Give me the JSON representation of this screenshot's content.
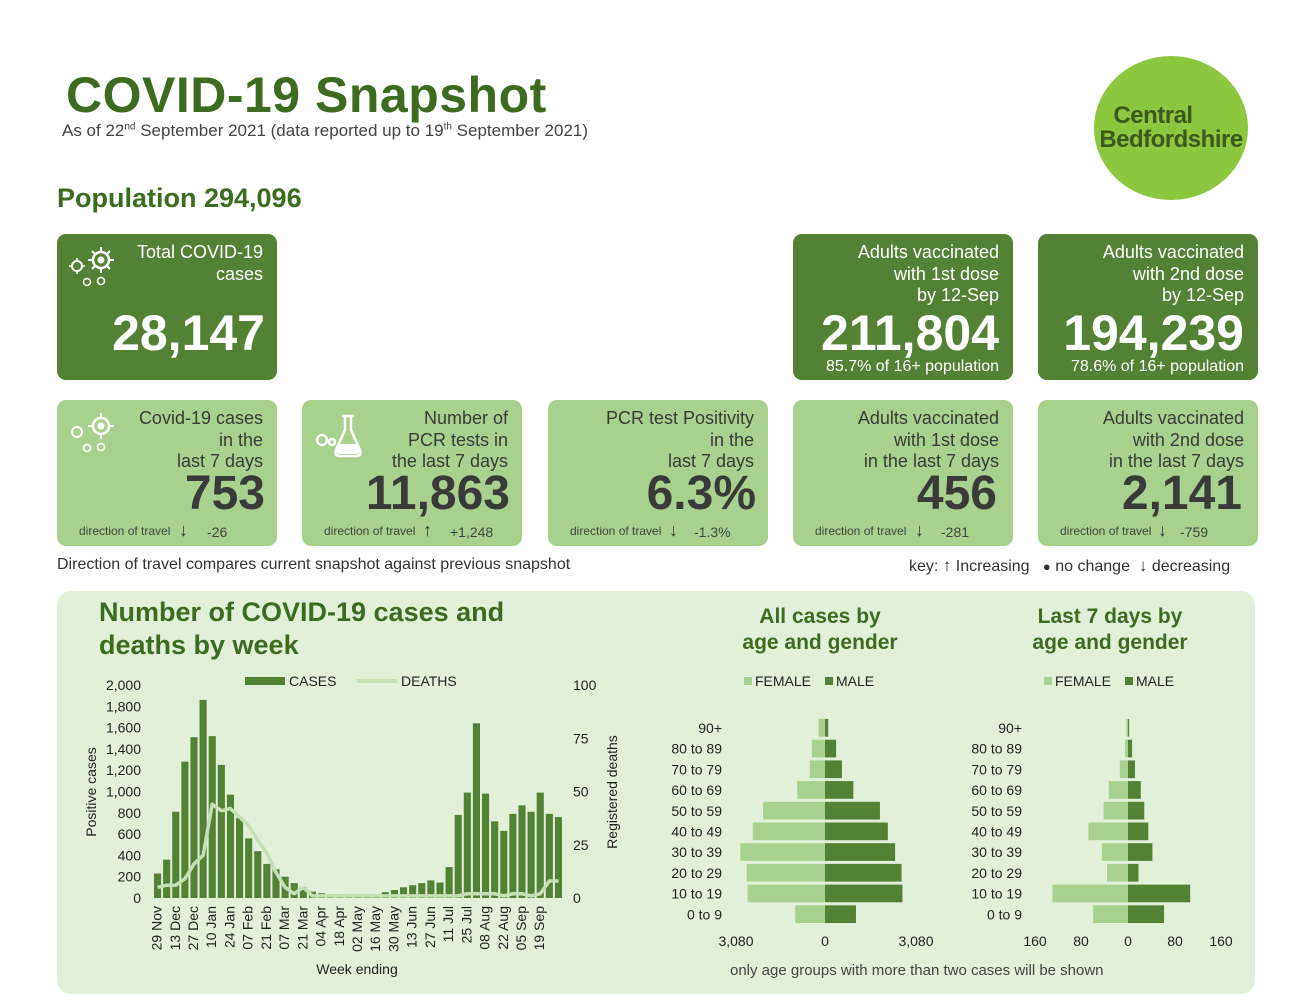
{
  "header": {
    "title": "COVID-19 Snapshot",
    "subtitle_prefix": "As of 22",
    "subtitle_sup1": "nd",
    "subtitle_mid": " September 2021 (data reported up to 19",
    "subtitle_sup2": "th",
    "subtitle_suffix": " September 2021)",
    "logo_line1": "Central",
    "logo_line2": "Bedfordshire",
    "population": "Population 294,096"
  },
  "colors": {
    "dark_green": "#548235",
    "light_green": "#a9d18e",
    "panel_bg": "#e2f0d9",
    "title_green": "#3d6b1f",
    "logo_green": "#8dc63f"
  },
  "top_cards": [
    {
      "label": "Total COVID-19\ncases",
      "value": "28,147",
      "pct": "",
      "icon": "virus-icon"
    },
    {
      "label": "Adults vaccinated\nwith 1st dose\nby 12-Sep",
      "value": "211,804",
      "pct": "85.7% of 16+ population"
    },
    {
      "label": "Adults vaccinated\nwith 2nd dose\nby 12-Sep",
      "value": "194,239",
      "pct": "78.6% of 16+ population"
    }
  ],
  "week_cards": [
    {
      "label": "Covid-19 cases\nin the\nlast 7 days",
      "value": "753",
      "dir_label": "direction of travel",
      "arrow": "↓",
      "change": "-26",
      "icon": "virus-icon"
    },
    {
      "label": "Number of\nPCR tests in\nthe last 7 days",
      "value": "11,863",
      "dir_label": "direction of travel",
      "arrow": "↑",
      "change": "+1,248",
      "icon": "flask-icon"
    },
    {
      "label": "PCR test Positivity\nin the\nlast 7 days",
      "value": "6.3%",
      "dir_label": "direction of travel",
      "arrow": "↓",
      "change": "-1.3%"
    },
    {
      "label": "Adults vaccinated\nwith 1st dose\nin the last 7 days",
      "value": "456",
      "dir_label": "direction of travel",
      "arrow": "↓",
      "change": "-281"
    },
    {
      "label": "Adults vaccinated\nwith 2nd dose\nin the last 7 days",
      "value": "2,141",
      "dir_label": "direction of travel",
      "arrow": "↓",
      "change": "-759"
    }
  ],
  "notes": {
    "direction": "Direction of travel compares current snapshot against previous snapshot",
    "key": "key:",
    "key_up_arrow": "↑",
    "key_up": "Increasing",
    "key_dot": "●",
    "key_same": "no change",
    "key_down_arrow": "↓",
    "key_down": "decreasing",
    "footnote": "only age groups with more than two cases will be shown"
  },
  "chart_titles": {
    "weekly": "Number of COVID-19 cases and\ndeaths by week",
    "all_cases": "All cases by\nage and gender",
    "last7": "Last 7 days by\nage and gender"
  },
  "chart_data": [
    {
      "type": "bar",
      "title": "Number of COVID-19 cases and deaths by week",
      "xlabel": "Week ending",
      "ylabel": "Positive cases",
      "y2label": "Registered deaths",
      "ylim": [
        0,
        2000
      ],
      "y2lim": [
        0,
        100
      ],
      "yticks": [
        "0",
        "200",
        "400",
        "600",
        "800",
        "1,000",
        "1,200",
        "1,400",
        "1,600",
        "1,800",
        "2,000"
      ],
      "y2ticks": [
        "0",
        "25",
        "50",
        "75",
        "100"
      ],
      "xtick_labels": [
        "29 Nov",
        "13 Dec",
        "27 Dec",
        "10 Jan",
        "24 Jan",
        "07 Feb",
        "21 Feb",
        "07 Mar",
        "21 Mar",
        "04 Apr",
        "18 Apr",
        "02 May",
        "16 May",
        "30 May",
        "13 Jun",
        "27 Jun",
        "11 Jul",
        "25 Jul",
        "08 Aug",
        "22 Aug",
        "05 Sep",
        "19 Sep"
      ],
      "legend": [
        "CASES",
        "DEATHS"
      ],
      "series": [
        {
          "name": "CASES",
          "type": "bar",
          "values": [
            230,
            360,
            810,
            1280,
            1510,
            1860,
            1520,
            1250,
            970,
            750,
            560,
            440,
            320,
            270,
            200,
            140,
            100,
            60,
            45,
            35,
            35,
            30,
            30,
            30,
            30,
            55,
            75,
            100,
            120,
            140,
            165,
            145,
            290,
            780,
            990,
            1640,
            980,
            720,
            630,
            790,
            870,
            810,
            990,
            790,
            760
          ]
        },
        {
          "name": "DEATHS",
          "type": "line",
          "values": [
            5,
            6,
            6,
            9,
            16,
            20,
            44,
            41,
            42,
            38,
            34,
            27,
            21,
            12,
            5,
            2,
            5,
            1,
            1,
            1,
            1,
            1,
            1,
            1,
            1,
            1,
            1,
            1,
            1,
            1,
            1,
            1,
            1,
            1,
            2,
            2,
            2,
            2,
            1,
            2,
            2,
            1,
            2,
            8,
            8
          ]
        }
      ]
    },
    {
      "type": "bar",
      "title": "All cases by age and gender",
      "categories": [
        "90+",
        "80 to 89",
        "70 to 79",
        "60 to 69",
        "50 to 59",
        "40 to 49",
        "30 to 39",
        "20 to 29",
        "10 to 19",
        "0 to 9"
      ],
      "xtick_labels": [
        "3,080",
        "0",
        "3,080"
      ],
      "xlim": [
        -3080,
        3080
      ],
      "legend": [
        "FEMALE",
        "MALE"
      ],
      "series": [
        {
          "name": "FEMALE",
          "values": [
            220,
            450,
            520,
            950,
            2120,
            2470,
            2900,
            2680,
            2650,
            1020
          ]
        },
        {
          "name": "MALE",
          "values": [
            110,
            380,
            580,
            970,
            1880,
            2150,
            2400,
            2620,
            2650,
            1060
          ]
        }
      ]
    },
    {
      "type": "bar",
      "title": "Last 7 days by age and gender",
      "categories": [
        "90+",
        "80 to 89",
        "70 to 79",
        "60 to 69",
        "50 to 59",
        "40 to 49",
        "30 to 39",
        "20 to 29",
        "10 to 19",
        "0 to 9"
      ],
      "xtick_labels": [
        "160",
        "80",
        "0",
        "80",
        "160"
      ],
      "xlim": [
        -160,
        160
      ],
      "legend": [
        "FEMALE",
        "MALE"
      ],
      "series": [
        {
          "name": "FEMALE",
          "values": [
            3,
            5,
            14,
            33,
            42,
            68,
            45,
            36,
            130,
            60
          ]
        },
        {
          "name": "MALE",
          "values": [
            2,
            7,
            12,
            22,
            28,
            35,
            42,
            18,
            107,
            62
          ]
        }
      ]
    }
  ]
}
